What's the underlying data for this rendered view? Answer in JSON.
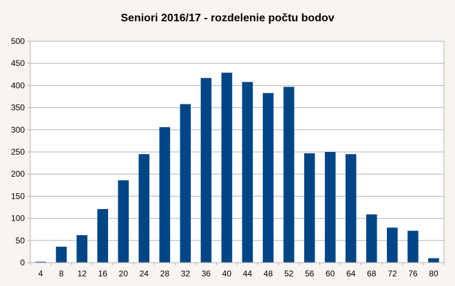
{
  "chart_data": {
    "type": "bar",
    "title": "Seniori 2016/17 - rozdelenie počtu bodov",
    "xlabel": "",
    "ylabel": "",
    "categories": [
      "4",
      "8",
      "12",
      "16",
      "20",
      "24",
      "28",
      "32",
      "36",
      "40",
      "44",
      "48",
      "52",
      "56",
      "60",
      "64",
      "68",
      "72",
      "76",
      "80"
    ],
    "values": [
      2,
      36,
      62,
      121,
      186,
      245,
      306,
      358,
      417,
      429,
      408,
      383,
      397,
      247,
      250,
      245,
      109,
      79,
      72,
      10
    ],
    "ylim": [
      0,
      500
    ],
    "yticks": [
      0,
      50,
      100,
      150,
      200,
      250,
      300,
      350,
      400,
      450,
      500
    ],
    "grid": true,
    "legend": "none",
    "colors": {
      "bar": "#004586",
      "grid": "#b3b3b3",
      "axis": "#b3b3b3",
      "background": "#f8f4f0",
      "plot_background": "#ffffff"
    }
  }
}
